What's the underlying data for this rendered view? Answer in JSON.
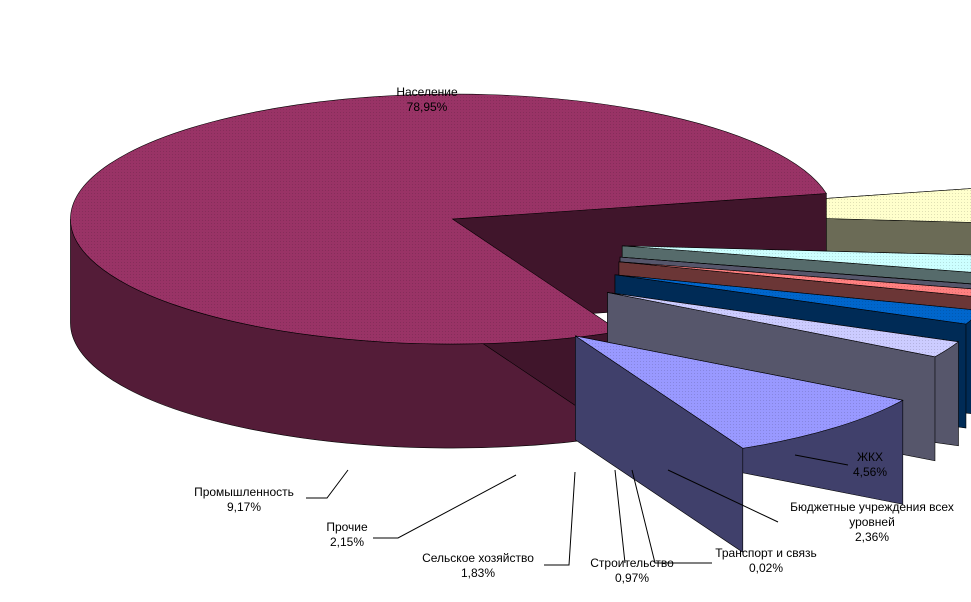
{
  "chart_data": {
    "type": "pie",
    "style": "3d-exploded",
    "title": "",
    "slices": [
      {
        "name": "Население",
        "value": 78.95,
        "label": "78,95%",
        "color": "#993366"
      },
      {
        "name": "ЖКХ",
        "value": 4.56,
        "label": "4,56%",
        "color": "#ffffcc"
      },
      {
        "name": "Бюджетные учреждения всех уровней",
        "value": 2.36,
        "label": "2,36%",
        "color": "#ccffff"
      },
      {
        "name": "Транспорт и связь",
        "value": 0.02,
        "label": "0,02%",
        "color": "#ccccff"
      },
      {
        "name": "Строительство",
        "value": 0.97,
        "label": "0,97%",
        "color": "#ff8080"
      },
      {
        "name": "Сельское хозяйство",
        "value": 1.83,
        "label": "1,83%",
        "color": "#0066cc"
      },
      {
        "name": "Прочие",
        "value": 2.15,
        "label": "2,15%",
        "color": "#ccccff"
      },
      {
        "name": "Промышленность",
        "value": 9.17,
        "label": "9,17%",
        "color": "#9999ff"
      }
    ]
  }
}
